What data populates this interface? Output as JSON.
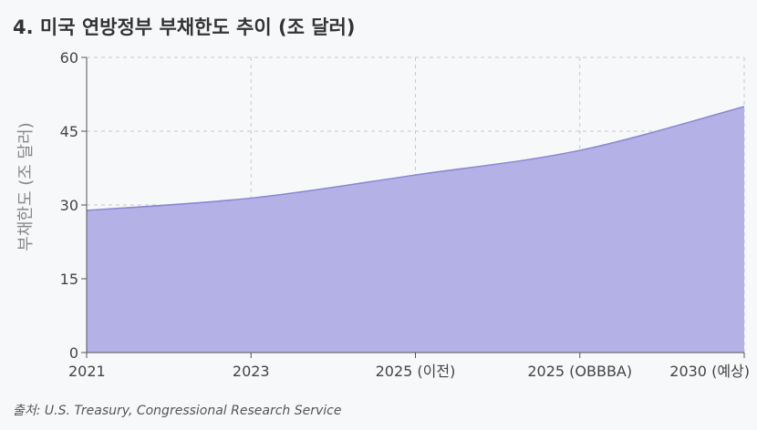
{
  "title": "4. 미국 연방정부 부채한도 추이 (조 달러)",
  "source": "출처: U.S. Treasury, Congressional Research Service",
  "chart_data": {
    "type": "area",
    "categories": [
      "2021",
      "2023",
      "2025 (이전)",
      "2025 (OBBBA)",
      "2030 (예상)"
    ],
    "values": [
      28.9,
      31.4,
      36.1,
      41.1,
      50.0
    ],
    "xlabel": "",
    "ylabel": "부채한도 (조 달러)",
    "ylim": [
      0,
      60
    ],
    "yticks": [
      0,
      15,
      30,
      45,
      60
    ],
    "grid": true,
    "fill_color": "#b3b1e6",
    "line_color": "#8a86d4"
  }
}
